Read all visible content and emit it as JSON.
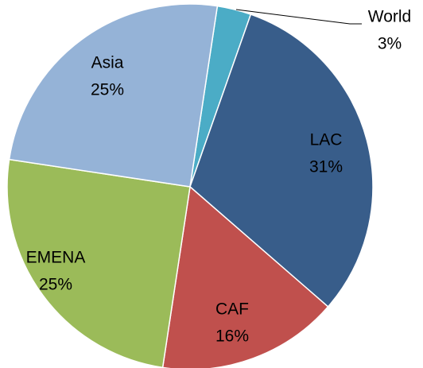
{
  "chart_data": {
    "type": "pie",
    "categories": [
      "World",
      "LAC",
      "CAF",
      "EMENA",
      "Asia"
    ],
    "values": [
      3,
      31,
      16,
      25,
      25
    ],
    "value_labels": [
      "3%",
      "31%",
      "16%",
      "25%",
      "25%"
    ],
    "colors": [
      "#4bacc6",
      "#385d8a",
      "#c0504d",
      "#9bbb59",
      "#95b3d7"
    ]
  }
}
